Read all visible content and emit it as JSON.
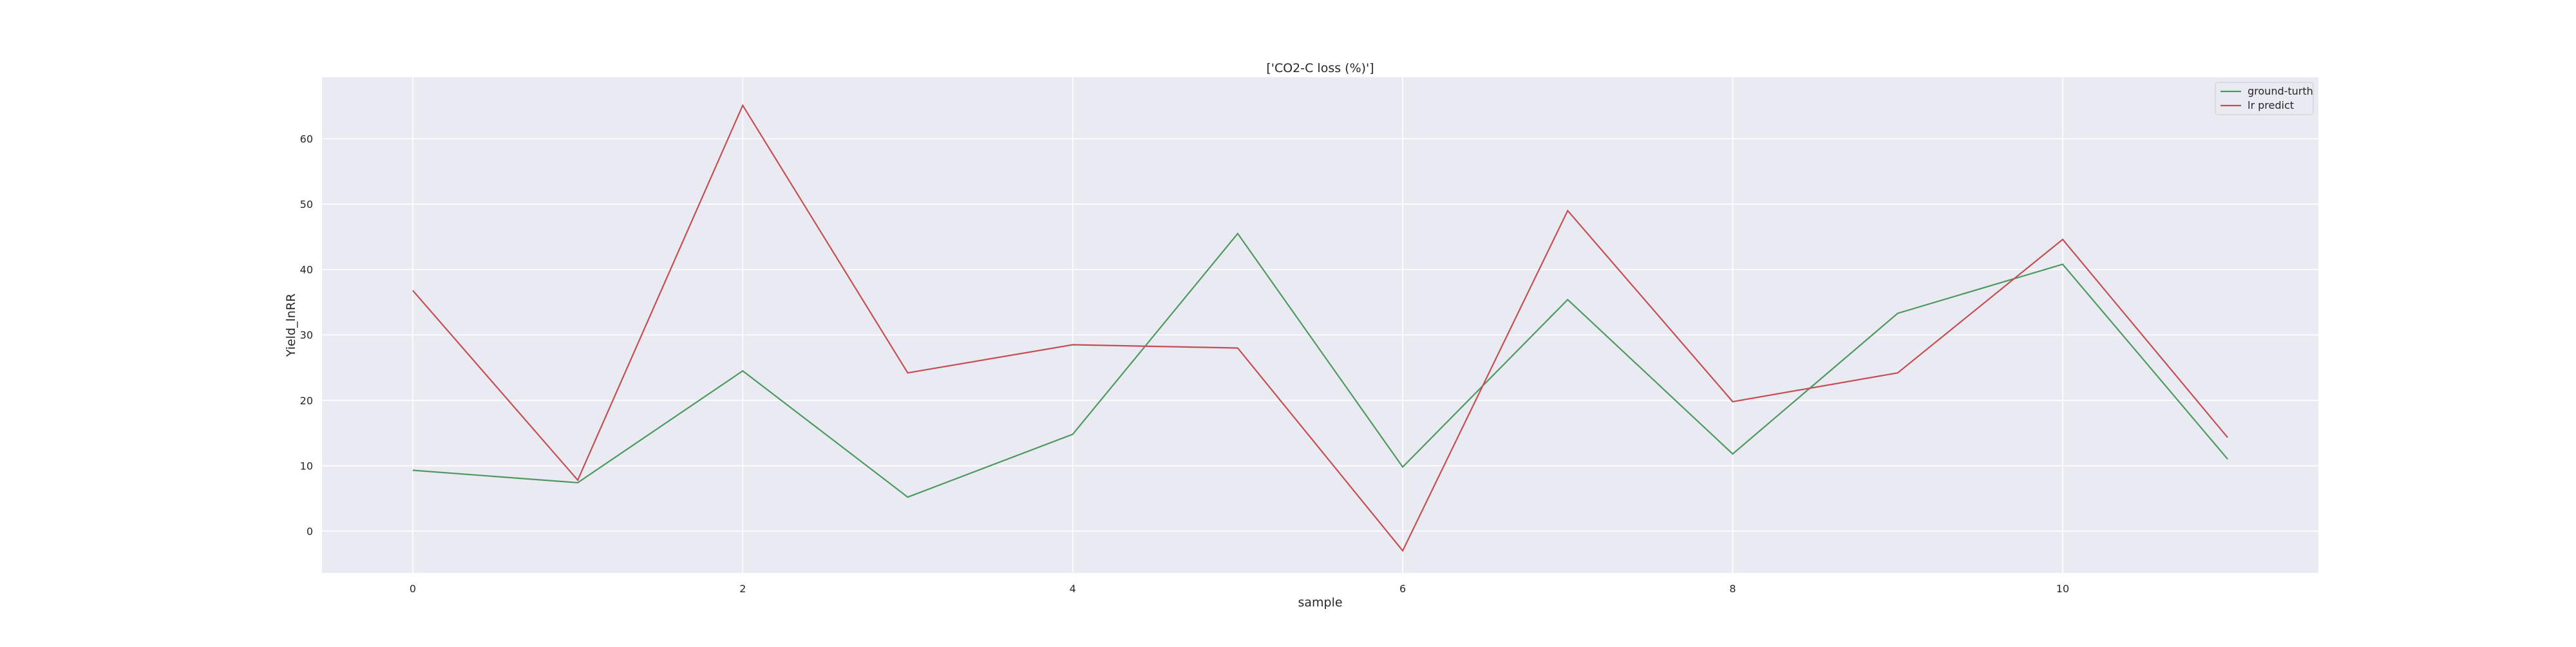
{
  "chart_data": {
    "type": "line",
    "title": "['CO2-C loss (%)']",
    "xlabel": "sample",
    "ylabel": "Yield_lnRR",
    "x": [
      0,
      1,
      2,
      3,
      4,
      5,
      6,
      7,
      8,
      9,
      10,
      11
    ],
    "xticks": [
      0,
      2,
      4,
      6,
      8,
      10
    ],
    "yticks": [
      0,
      10,
      20,
      30,
      40,
      50,
      60
    ],
    "xlim": [
      -0.55,
      11.55
    ],
    "ylim": [
      -6.4,
      69.4
    ],
    "grid": true,
    "legend_position": "top-right",
    "series": [
      {
        "name": "ground-turth",
        "color": "#4c9a5f",
        "values": [
          9.3,
          7.4,
          24.5,
          5.2,
          14.8,
          45.5,
          9.8,
          35.4,
          11.8,
          33.3,
          40.8,
          11.0
        ]
      },
      {
        "name": "lr predict",
        "color": "#c44e52",
        "values": [
          36.8,
          7.8,
          65.1,
          24.2,
          28.5,
          28.0,
          -3.0,
          49.0,
          19.8,
          24.2,
          44.6,
          14.3
        ]
      }
    ]
  }
}
